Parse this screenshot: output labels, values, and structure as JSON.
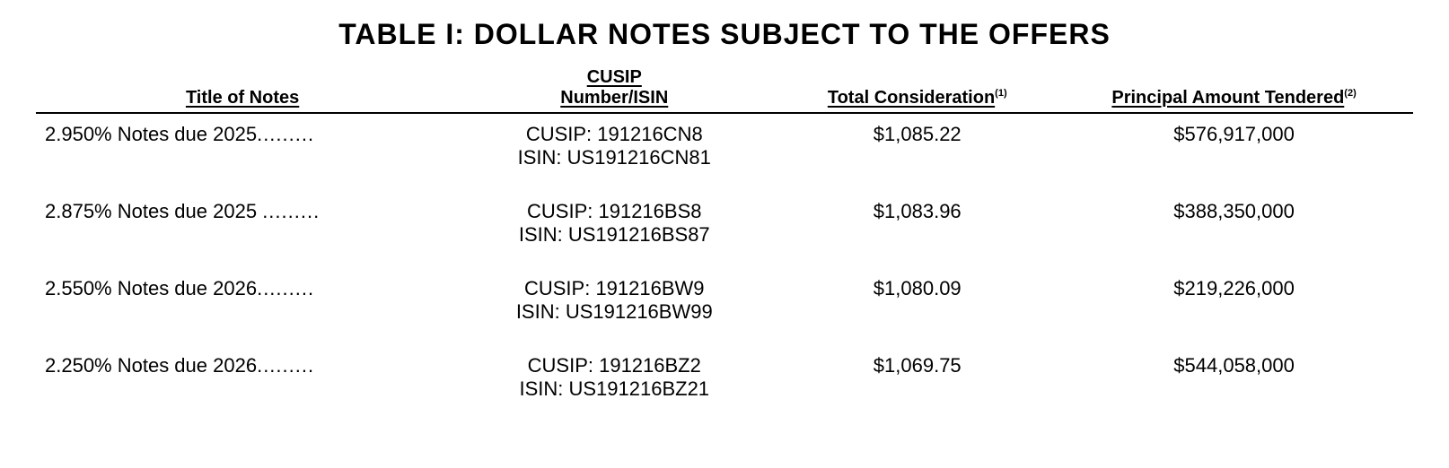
{
  "title": "TABLE I: DOLLAR NOTES SUBJECT TO THE OFFERS",
  "columns": {
    "c1": "Title of Notes",
    "c2_line1": "CUSIP",
    "c2_line2": "Number/ISIN",
    "c3": "Total Consideration",
    "c3_sup": "(1)",
    "c4": "Principal Amount Tendered",
    "c4_sup": "(2)"
  },
  "rows": [
    {
      "title": "2.950% Notes due 2025",
      "dots": ".........",
      "cusip": "CUSIP: 191216CN8",
      "isin": "ISIN: US191216CN81",
      "consideration": "$1,085.22",
      "tendered": "$576,917,000"
    },
    {
      "title": "2.875% Notes due 2025 ",
      "dots": ".........",
      "cusip": "CUSIP: 191216BS8",
      "isin": "ISIN: US191216BS87",
      "consideration": "$1,083.96",
      "tendered": "$388,350,000"
    },
    {
      "title": "2.550% Notes due 2026",
      "dots": ".........",
      "cusip": "CUSIP: 191216BW9",
      "isin": "ISIN: US191216BW99",
      "consideration": "$1,080.09",
      "tendered": "$219,226,000"
    },
    {
      "title": "2.250% Notes due 2026",
      "dots": ".........",
      "cusip": "CUSIP: 191216BZ2",
      "isin": "ISIN: US191216BZ21",
      "consideration": "$1,069.75",
      "tendered": "$544,058,000"
    }
  ],
  "style": {
    "background_color": "#ffffff",
    "text_color": "#000000",
    "title_fontsize": 32,
    "header_fontsize": 20,
    "cell_fontsize": 22
  }
}
